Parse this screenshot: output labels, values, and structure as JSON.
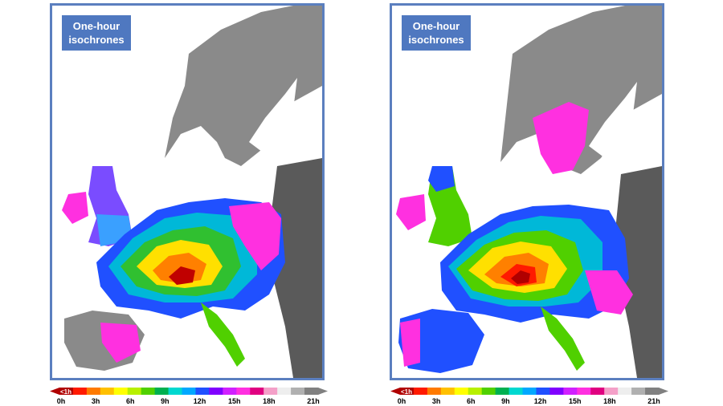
{
  "panels": [
    {
      "id": "left",
      "title_line1": "One-hour",
      "title_line2": "isochrones"
    },
    {
      "id": "right",
      "title_line1": "One-hour",
      "title_line2": "isochrones"
    }
  ],
  "legend": {
    "first_label": "<1h",
    "tick_labels": [
      "0h",
      "3h",
      "6h",
      "9h",
      "12h",
      "15h",
      "18h",
      "21h"
    ],
    "colors": [
      "#b00000",
      "#ff1a00",
      "#ff7a00",
      "#ffc000",
      "#ffff00",
      "#b8f000",
      "#50d000",
      "#00b050",
      "#00d8d0",
      "#00a8ff",
      "#2050ff",
      "#8000ff",
      "#d020ff",
      "#ff30e0",
      "#e00080",
      "#f4a0c8",
      "#eeeeee",
      "#b0b0b0",
      "#808080"
    ]
  },
  "colors": {
    "panel_border": "#5b7fbf",
    "title_bg": "#4f78c0",
    "sea": "#ffffff",
    "land_no_data": "#8a8a8a",
    "land_dark": "#5a5a5a"
  }
}
